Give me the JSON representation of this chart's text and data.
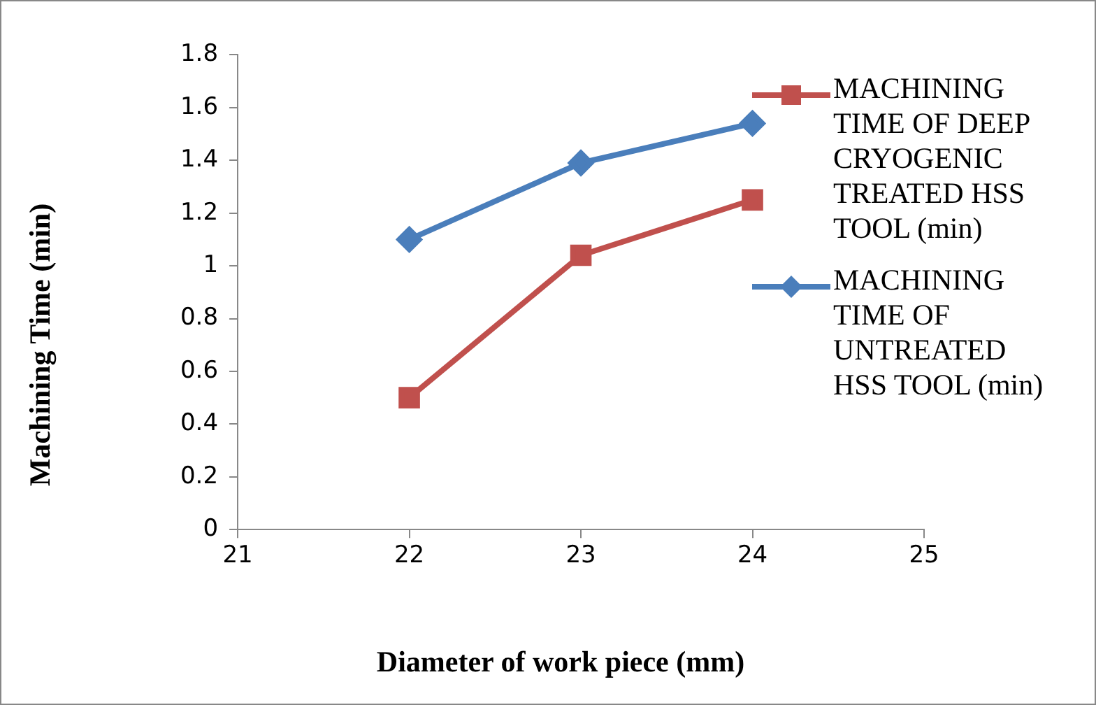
{
  "chart_data": {
    "type": "line",
    "xlabel": "Diameter of work piece (mm)",
    "ylabel": "Machining Time (min)",
    "x": [
      22,
      23,
      24
    ],
    "series": [
      {
        "name": "MACHINING TIME OF DEEP CRYOGENIC TREATED HSS TOOL (min)",
        "color": "#c0504d",
        "marker": "square",
        "values": [
          0.5,
          1.04,
          1.25
        ]
      },
      {
        "name": "MACHINING TIME OF UNTREATED HSS TOOL (min)",
        "color": "#4a7ebb",
        "marker": "diamond",
        "values": [
          1.1,
          1.39,
          1.54
        ]
      }
    ],
    "xlim": [
      21,
      25
    ],
    "xticks": [
      21,
      22,
      23,
      24,
      25
    ],
    "ylim": [
      0,
      1.8
    ],
    "yticks": [
      0,
      0.2,
      0.4,
      0.6,
      0.8,
      1,
      1.2,
      1.4,
      1.6,
      1.8
    ],
    "grid": false,
    "legend": "top right",
    "line_style": "solid"
  }
}
